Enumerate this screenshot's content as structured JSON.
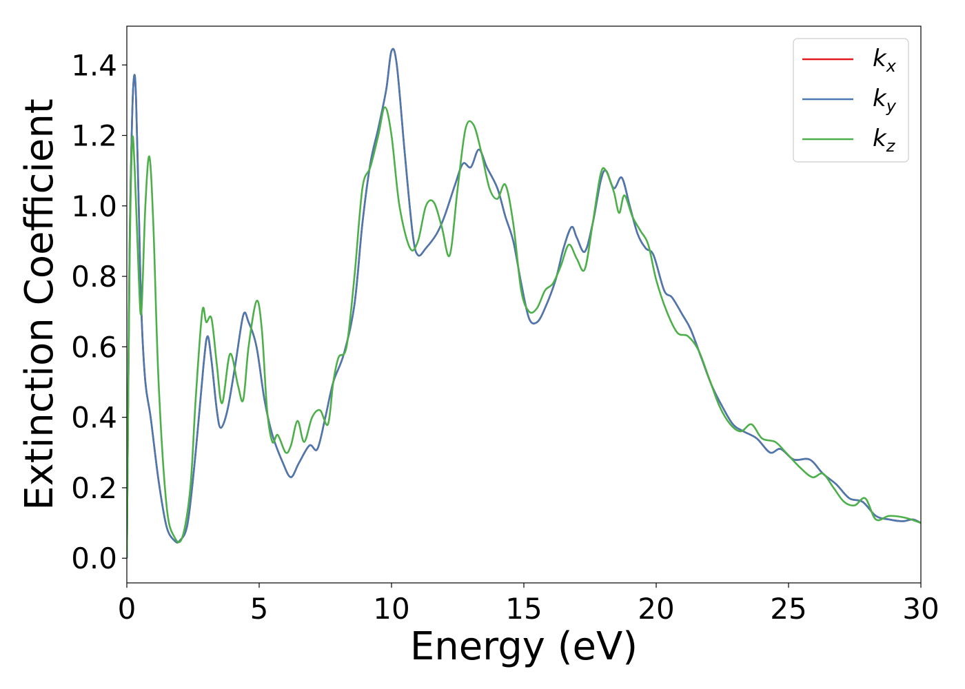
{
  "chart_data": {
    "type": "line",
    "title": "",
    "xlabel": "Energy (eV)",
    "ylabel": "Extinction Coefficient",
    "xlim": [
      0,
      30
    ],
    "ylim": [
      -0.07,
      1.51
    ],
    "xticks": [
      "0",
      "5",
      "10",
      "15",
      "20",
      "25",
      "30"
    ],
    "yticks": [
      "0.0",
      "0.2",
      "0.4",
      "0.6",
      "0.8",
      "1.0",
      "1.2",
      "1.4"
    ],
    "grid": false,
    "legend_position": "top-right",
    "series": [
      {
        "name": "k_x",
        "label_main": "k",
        "label_sub": "x",
        "color": "#e41a1c",
        "points": [
          [
            0,
            0.0
          ],
          [
            0.1,
            0.85
          ],
          [
            0.2,
            1.25
          ],
          [
            0.28,
            1.37
          ],
          [
            0.35,
            1.3
          ],
          [
            0.45,
            1.0
          ],
          [
            0.55,
            0.7
          ],
          [
            0.7,
            0.5
          ],
          [
            0.9,
            0.4
          ],
          [
            1.2,
            0.22
          ],
          [
            1.5,
            0.09
          ],
          [
            1.8,
            0.05
          ],
          [
            2.0,
            0.05
          ],
          [
            2.3,
            0.1
          ],
          [
            2.6,
            0.3
          ],
          [
            2.9,
            0.55
          ],
          [
            3.05,
            0.63
          ],
          [
            3.2,
            0.56
          ],
          [
            3.4,
            0.42
          ],
          [
            3.55,
            0.37
          ],
          [
            3.8,
            0.42
          ],
          [
            4.1,
            0.55
          ],
          [
            4.4,
            0.69
          ],
          [
            4.6,
            0.67
          ],
          [
            4.9,
            0.6
          ],
          [
            5.2,
            0.45
          ],
          [
            5.5,
            0.35
          ],
          [
            5.9,
            0.27
          ],
          [
            6.2,
            0.23
          ],
          [
            6.5,
            0.27
          ],
          [
            6.9,
            0.32
          ],
          [
            7.2,
            0.31
          ],
          [
            7.5,
            0.4
          ],
          [
            7.8,
            0.5
          ],
          [
            8.2,
            0.58
          ],
          [
            8.6,
            0.72
          ],
          [
            8.9,
            0.95
          ],
          [
            9.2,
            1.12
          ],
          [
            9.5,
            1.22
          ],
          [
            9.8,
            1.33
          ],
          [
            10.0,
            1.44
          ],
          [
            10.2,
            1.4
          ],
          [
            10.5,
            1.15
          ],
          [
            10.8,
            0.92
          ],
          [
            11.0,
            0.86
          ],
          [
            11.3,
            0.88
          ],
          [
            11.7,
            0.92
          ],
          [
            12.0,
            0.97
          ],
          [
            12.4,
            1.06
          ],
          [
            12.7,
            1.12
          ],
          [
            13.0,
            1.11
          ],
          [
            13.3,
            1.16
          ],
          [
            13.6,
            1.11
          ],
          [
            14.0,
            1.05
          ],
          [
            14.3,
            0.97
          ],
          [
            14.6,
            0.9
          ],
          [
            14.9,
            0.78
          ],
          [
            15.2,
            0.68
          ],
          [
            15.5,
            0.67
          ],
          [
            15.8,
            0.71
          ],
          [
            16.2,
            0.79
          ],
          [
            16.5,
            0.88
          ],
          [
            16.8,
            0.94
          ],
          [
            17.0,
            0.91
          ],
          [
            17.3,
            0.87
          ],
          [
            17.6,
            0.95
          ],
          [
            17.9,
            1.07
          ],
          [
            18.1,
            1.1
          ],
          [
            18.4,
            1.05
          ],
          [
            18.7,
            1.08
          ],
          [
            19.0,
            1.0
          ],
          [
            19.3,
            0.92
          ],
          [
            19.6,
            0.88
          ],
          [
            19.9,
            0.86
          ],
          [
            20.3,
            0.76
          ],
          [
            20.6,
            0.74
          ],
          [
            21.0,
            0.69
          ],
          [
            21.3,
            0.65
          ],
          [
            21.7,
            0.57
          ],
          [
            22.1,
            0.49
          ],
          [
            22.5,
            0.43
          ],
          [
            22.9,
            0.38
          ],
          [
            23.3,
            0.36
          ],
          [
            23.8,
            0.34
          ],
          [
            24.3,
            0.3
          ],
          [
            24.7,
            0.31
          ],
          [
            25.2,
            0.28
          ],
          [
            25.8,
            0.28
          ],
          [
            26.3,
            0.24
          ],
          [
            26.8,
            0.21
          ],
          [
            27.3,
            0.17
          ],
          [
            27.8,
            0.16
          ],
          [
            28.3,
            0.12
          ],
          [
            28.8,
            0.11
          ],
          [
            29.3,
            0.105
          ],
          [
            29.7,
            0.11
          ],
          [
            30.0,
            0.1
          ]
        ]
      },
      {
        "name": "k_y",
        "label_main": "k",
        "label_sub": "y",
        "color": "#4a79b0",
        "points": [
          [
            0,
            0.0
          ],
          [
            0.1,
            0.85
          ],
          [
            0.2,
            1.25
          ],
          [
            0.28,
            1.37
          ],
          [
            0.35,
            1.3
          ],
          [
            0.45,
            1.0
          ],
          [
            0.55,
            0.7
          ],
          [
            0.7,
            0.5
          ],
          [
            0.9,
            0.4
          ],
          [
            1.2,
            0.22
          ],
          [
            1.5,
            0.09
          ],
          [
            1.8,
            0.05
          ],
          [
            2.0,
            0.05
          ],
          [
            2.3,
            0.1
          ],
          [
            2.6,
            0.3
          ],
          [
            2.9,
            0.55
          ],
          [
            3.05,
            0.63
          ],
          [
            3.2,
            0.56
          ],
          [
            3.4,
            0.42
          ],
          [
            3.55,
            0.37
          ],
          [
            3.8,
            0.42
          ],
          [
            4.1,
            0.55
          ],
          [
            4.4,
            0.69
          ],
          [
            4.6,
            0.67
          ],
          [
            4.9,
            0.6
          ],
          [
            5.2,
            0.45
          ],
          [
            5.5,
            0.35
          ],
          [
            5.9,
            0.27
          ],
          [
            6.2,
            0.23
          ],
          [
            6.5,
            0.27
          ],
          [
            6.9,
            0.32
          ],
          [
            7.2,
            0.31
          ],
          [
            7.5,
            0.4
          ],
          [
            7.8,
            0.5
          ],
          [
            8.2,
            0.58
          ],
          [
            8.6,
            0.72
          ],
          [
            8.9,
            0.95
          ],
          [
            9.2,
            1.12
          ],
          [
            9.5,
            1.22
          ],
          [
            9.8,
            1.33
          ],
          [
            10.0,
            1.44
          ],
          [
            10.2,
            1.4
          ],
          [
            10.5,
            1.15
          ],
          [
            10.8,
            0.92
          ],
          [
            11.0,
            0.86
          ],
          [
            11.3,
            0.88
          ],
          [
            11.7,
            0.92
          ],
          [
            12.0,
            0.97
          ],
          [
            12.4,
            1.06
          ],
          [
            12.7,
            1.12
          ],
          [
            13.0,
            1.11
          ],
          [
            13.3,
            1.16
          ],
          [
            13.6,
            1.11
          ],
          [
            14.0,
            1.05
          ],
          [
            14.3,
            0.97
          ],
          [
            14.6,
            0.9
          ],
          [
            14.9,
            0.78
          ],
          [
            15.2,
            0.68
          ],
          [
            15.5,
            0.67
          ],
          [
            15.8,
            0.71
          ],
          [
            16.2,
            0.79
          ],
          [
            16.5,
            0.88
          ],
          [
            16.8,
            0.94
          ],
          [
            17.0,
            0.91
          ],
          [
            17.3,
            0.87
          ],
          [
            17.6,
            0.95
          ],
          [
            17.9,
            1.07
          ],
          [
            18.1,
            1.1
          ],
          [
            18.4,
            1.05
          ],
          [
            18.7,
            1.08
          ],
          [
            19.0,
            1.0
          ],
          [
            19.3,
            0.92
          ],
          [
            19.6,
            0.88
          ],
          [
            19.9,
            0.86
          ],
          [
            20.3,
            0.76
          ],
          [
            20.6,
            0.74
          ],
          [
            21.0,
            0.69
          ],
          [
            21.3,
            0.65
          ],
          [
            21.7,
            0.57
          ],
          [
            22.1,
            0.49
          ],
          [
            22.5,
            0.43
          ],
          [
            22.9,
            0.38
          ],
          [
            23.3,
            0.36
          ],
          [
            23.8,
            0.34
          ],
          [
            24.3,
            0.3
          ],
          [
            24.7,
            0.31
          ],
          [
            25.2,
            0.28
          ],
          [
            25.8,
            0.28
          ],
          [
            26.3,
            0.24
          ],
          [
            26.8,
            0.21
          ],
          [
            27.3,
            0.17
          ],
          [
            27.8,
            0.16
          ],
          [
            28.3,
            0.12
          ],
          [
            28.8,
            0.11
          ],
          [
            29.3,
            0.105
          ],
          [
            29.7,
            0.11
          ],
          [
            30.0,
            0.1
          ]
        ]
      },
      {
        "name": "k_z",
        "label_main": "k",
        "label_sub": "z",
        "color": "#4daf4a",
        "points": [
          [
            0,
            0.0
          ],
          [
            0.1,
            0.8
          ],
          [
            0.2,
            1.18
          ],
          [
            0.3,
            1.1
          ],
          [
            0.45,
            0.8
          ],
          [
            0.55,
            0.7
          ],
          [
            0.7,
            1.0
          ],
          [
            0.85,
            1.14
          ],
          [
            1.0,
            0.95
          ],
          [
            1.2,
            0.5
          ],
          [
            1.5,
            0.15
          ],
          [
            1.8,
            0.06
          ],
          [
            2.1,
            0.06
          ],
          [
            2.4,
            0.2
          ],
          [
            2.6,
            0.45
          ],
          [
            2.85,
            0.7
          ],
          [
            3.0,
            0.67
          ],
          [
            3.2,
            0.68
          ],
          [
            3.4,
            0.55
          ],
          [
            3.6,
            0.44
          ],
          [
            3.9,
            0.58
          ],
          [
            4.2,
            0.49
          ],
          [
            4.4,
            0.45
          ],
          [
            4.6,
            0.6
          ],
          [
            4.9,
            0.73
          ],
          [
            5.1,
            0.65
          ],
          [
            5.3,
            0.42
          ],
          [
            5.5,
            0.33
          ],
          [
            5.7,
            0.35
          ],
          [
            6.0,
            0.3
          ],
          [
            6.2,
            0.32
          ],
          [
            6.45,
            0.39
          ],
          [
            6.7,
            0.33
          ],
          [
            7.0,
            0.4
          ],
          [
            7.3,
            0.42
          ],
          [
            7.6,
            0.38
          ],
          [
            7.8,
            0.5
          ],
          [
            8.0,
            0.57
          ],
          [
            8.3,
            0.6
          ],
          [
            8.6,
            0.8
          ],
          [
            8.9,
            1.05
          ],
          [
            9.2,
            1.11
          ],
          [
            9.5,
            1.2
          ],
          [
            9.75,
            1.28
          ],
          [
            10.0,
            1.2
          ],
          [
            10.3,
            1.0
          ],
          [
            10.7,
            0.88
          ],
          [
            11.0,
            0.9
          ],
          [
            11.3,
            1.0
          ],
          [
            11.6,
            1.01
          ],
          [
            11.9,
            0.94
          ],
          [
            12.2,
            0.86
          ],
          [
            12.5,
            1.05
          ],
          [
            12.8,
            1.22
          ],
          [
            13.1,
            1.23
          ],
          [
            13.4,
            1.15
          ],
          [
            13.7,
            1.05
          ],
          [
            14.0,
            1.02
          ],
          [
            14.3,
            1.06
          ],
          [
            14.6,
            0.95
          ],
          [
            14.9,
            0.76
          ],
          [
            15.2,
            0.7
          ],
          [
            15.5,
            0.71
          ],
          [
            15.8,
            0.76
          ],
          [
            16.1,
            0.78
          ],
          [
            16.4,
            0.83
          ],
          [
            16.7,
            0.89
          ],
          [
            17.0,
            0.85
          ],
          [
            17.3,
            0.82
          ],
          [
            17.6,
            0.95
          ],
          [
            17.9,
            1.09
          ],
          [
            18.1,
            1.1
          ],
          [
            18.4,
            1.04
          ],
          [
            18.6,
            0.98
          ],
          [
            18.8,
            1.03
          ],
          [
            19.1,
            0.97
          ],
          [
            19.4,
            0.93
          ],
          [
            19.7,
            0.89
          ],
          [
            20.0,
            0.79
          ],
          [
            20.4,
            0.7
          ],
          [
            20.8,
            0.64
          ],
          [
            21.2,
            0.63
          ],
          [
            21.6,
            0.59
          ],
          [
            22.0,
            0.51
          ],
          [
            22.4,
            0.43
          ],
          [
            22.8,
            0.38
          ],
          [
            23.2,
            0.36
          ],
          [
            23.6,
            0.38
          ],
          [
            24.0,
            0.34
          ],
          [
            24.5,
            0.33
          ],
          [
            24.9,
            0.3
          ],
          [
            25.4,
            0.26
          ],
          [
            25.9,
            0.23
          ],
          [
            26.3,
            0.24
          ],
          [
            26.7,
            0.2
          ],
          [
            27.1,
            0.16
          ],
          [
            27.5,
            0.15
          ],
          [
            27.9,
            0.17
          ],
          [
            28.3,
            0.11
          ],
          [
            28.8,
            0.12
          ],
          [
            29.4,
            0.115
          ],
          [
            30.0,
            0.1
          ]
        ]
      }
    ]
  }
}
